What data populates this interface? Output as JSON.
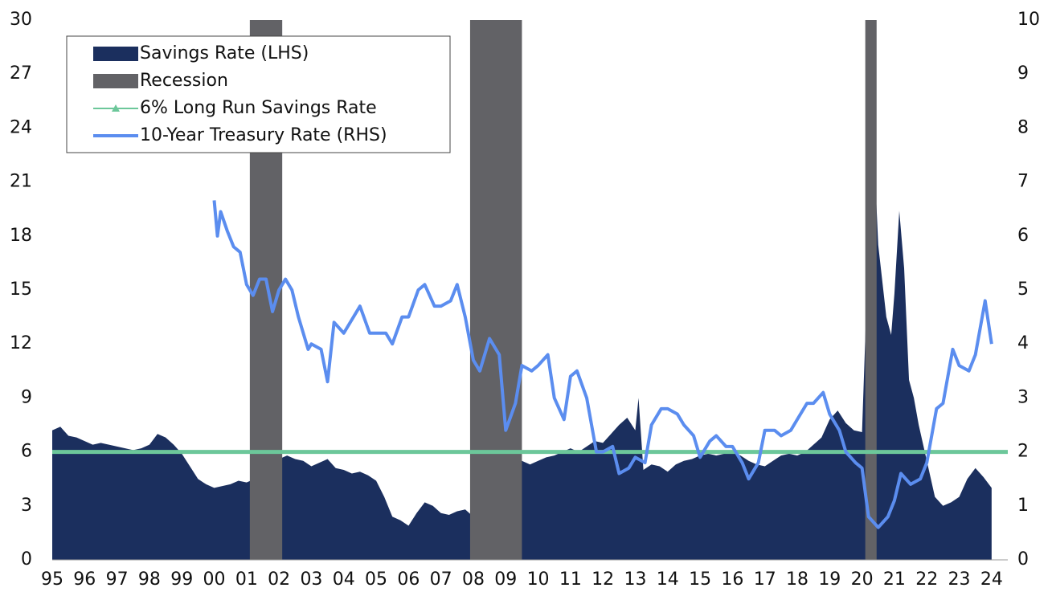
{
  "chart_data": {
    "type": "area",
    "legend": "top-left",
    "xlim": [
      1995,
      2024.5
    ],
    "xticks": [
      {
        "value": 1995,
        "label": "95"
      },
      {
        "value": 1996,
        "label": "96"
      },
      {
        "value": 1997,
        "label": "97"
      },
      {
        "value": 1998,
        "label": "98"
      },
      {
        "value": 1999,
        "label": "99"
      },
      {
        "value": 2000,
        "label": "00"
      },
      {
        "value": 2001,
        "label": "01"
      },
      {
        "value": 2002,
        "label": "02"
      },
      {
        "value": 2003,
        "label": "03"
      },
      {
        "value": 2004,
        "label": "04"
      },
      {
        "value": 2005,
        "label": "05"
      },
      {
        "value": 2006,
        "label": "06"
      },
      {
        "value": 2007,
        "label": "07"
      },
      {
        "value": 2008,
        "label": "08"
      },
      {
        "value": 2009,
        "label": "09"
      },
      {
        "value": 2010,
        "label": "10"
      },
      {
        "value": 2011,
        "label": "11"
      },
      {
        "value": 2012,
        "label": "12"
      },
      {
        "value": 2013,
        "label": "13"
      },
      {
        "value": 2014,
        "label": "14"
      },
      {
        "value": 2015,
        "label": "15"
      },
      {
        "value": 2016,
        "label": "16"
      },
      {
        "value": 2017,
        "label": "17"
      },
      {
        "value": 2018,
        "label": "18"
      },
      {
        "value": 2019,
        "label": "19"
      },
      {
        "value": 2020,
        "label": "20"
      },
      {
        "value": 2021,
        "label": "21"
      },
      {
        "value": 2022,
        "label": "22"
      },
      {
        "value": 2023,
        "label": "23"
      },
      {
        "value": 2024,
        "label": "24"
      }
    ],
    "ylim": [
      0,
      30
    ],
    "yticks": [
      0,
      3,
      6,
      9,
      12,
      15,
      18,
      21,
      24,
      27,
      30
    ],
    "y2lim": [
      0,
      10
    ],
    "y2ticks": [
      0,
      1,
      2,
      3,
      4,
      5,
      6,
      7,
      8,
      9,
      10
    ],
    "series": [
      {
        "name": "Savings Rate (LHS)",
        "type": "area",
        "color": "#1b2f5e",
        "x": [
          1995,
          1995.25,
          1995.5,
          1995.75,
          1996,
          1996.25,
          1996.5,
          1996.75,
          1997,
          1997.25,
          1997.5,
          1997.75,
          1998,
          1998.25,
          1998.5,
          1998.75,
          1999,
          1999.25,
          1999.5,
          1999.75,
          2000,
          2000.25,
          2000.5,
          2000.75,
          2001,
          2001.25,
          2001.5,
          2001.75,
          2002,
          2002.25,
          2002.5,
          2002.75,
          2003,
          2003.25,
          2003.5,
          2003.75,
          2004,
          2004.25,
          2004.5,
          2004.75,
          2005,
          2005.25,
          2005.5,
          2005.75,
          2006,
          2006.25,
          2006.5,
          2006.75,
          2007,
          2007.25,
          2007.5,
          2007.75,
          2008,
          2008.25,
          2008.5,
          2008.75,
          2009,
          2009.25,
          2009.5,
          2009.75,
          2010,
          2010.25,
          2010.5,
          2010.75,
          2011,
          2011.25,
          2011.5,
          2011.75,
          2012,
          2012.25,
          2012.5,
          2012.75,
          2013,
          2013.1,
          2013.25,
          2013.5,
          2013.75,
          2014,
          2014.25,
          2014.5,
          2014.75,
          2015,
          2015.25,
          2015.5,
          2015.75,
          2016,
          2016.25,
          2016.5,
          2016.75,
          2017,
          2017.25,
          2017.5,
          2017.75,
          2018,
          2018.25,
          2018.5,
          2018.75,
          2019,
          2019.25,
          2019.5,
          2019.75,
          2020,
          2020.33,
          2020.5,
          2020.75,
          2020.9,
          2021,
          2021.15,
          2021.3,
          2021.45,
          2021.6,
          2021.75,
          2022,
          2022.25,
          2022.5,
          2022.75,
          2023,
          2023.25,
          2023.5,
          2023.75,
          2024
        ],
        "values": [
          7.2,
          7.4,
          6.9,
          6.8,
          6.6,
          6.4,
          6.5,
          6.4,
          6.3,
          6.2,
          6.1,
          6.2,
          6.4,
          7.0,
          6.8,
          6.4,
          5.9,
          5.2,
          4.5,
          4.2,
          4.0,
          4.1,
          4.2,
          4.4,
          4.3,
          4.5,
          5.5,
          4.5,
          5.6,
          5.8,
          5.6,
          5.5,
          5.2,
          5.4,
          5.6,
          5.1,
          5.0,
          4.8,
          4.9,
          4.7,
          4.4,
          3.5,
          2.4,
          2.2,
          1.9,
          2.6,
          3.2,
          3.0,
          2.6,
          2.5,
          2.7,
          2.8,
          2.4,
          4.5,
          4.0,
          5.0,
          5.5,
          6.2,
          5.5,
          5.3,
          5.5,
          5.7,
          5.8,
          6.0,
          6.2,
          6.0,
          6.3,
          6.6,
          6.5,
          7.0,
          7.5,
          7.9,
          7.2,
          9.0,
          5.0,
          5.3,
          5.2,
          4.9,
          5.3,
          5.5,
          5.6,
          5.8,
          5.9,
          5.8,
          5.9,
          6.0,
          5.8,
          5.5,
          5.3,
          5.2,
          5.5,
          5.8,
          5.9,
          5.8,
          6.0,
          6.4,
          6.8,
          7.8,
          8.3,
          7.6,
          7.2,
          7.1,
          24.4,
          17.5,
          13.5,
          12.5,
          14.8,
          19.4,
          16.2,
          10.0,
          9.0,
          7.5,
          5.5,
          3.5,
          3.0,
          3.2,
          3.5,
          4.5,
          5.1,
          4.6,
          4.0
        ]
      },
      {
        "name": "Recession",
        "type": "span",
        "color": "#626266",
        "spans": [
          [
            2001.1,
            2002.1
          ],
          [
            2007.9,
            2009.5
          ],
          [
            2020.1,
            2020.45
          ]
        ]
      },
      {
        "name": "6% Long Run Savings Rate",
        "type": "line",
        "marker": "triangle",
        "color": "#6cc79a",
        "x": [
          1995,
          2024.5
        ],
        "values": [
          6,
          6
        ]
      },
      {
        "name": "10-Year Treasury Rate (RHS)",
        "type": "line",
        "axis": "y2",
        "color": "#5b8def",
        "x": [
          2000,
          2000.1,
          2000.2,
          2000.4,
          2000.6,
          2000.8,
          2001,
          2001.2,
          2001.4,
          2001.6,
          2001.8,
          2002,
          2002.2,
          2002.4,
          2002.6,
          2002.9,
          2003,
          2003.3,
          2003.5,
          2003.7,
          2004,
          2004.3,
          2004.5,
          2004.8,
          2005,
          2005.3,
          2005.5,
          2005.8,
          2006,
          2006.3,
          2006.5,
          2006.8,
          2007,
          2007.3,
          2007.5,
          2007.75,
          2008,
          2008.2,
          2008.5,
          2008.8,
          2009,
          2009.3,
          2009.5,
          2009.8,
          2010,
          2010.3,
          2010.5,
          2010.8,
          2011,
          2011.2,
          2011.5,
          2011.8,
          2012,
          2012.3,
          2012.5,
          2012.8,
          2013,
          2013.3,
          2013.5,
          2013.8,
          2014,
          2014.3,
          2014.5,
          2014.8,
          2015,
          2015.3,
          2015.5,
          2015.8,
          2016,
          2016.3,
          2016.5,
          2016.8,
          2017,
          2017.3,
          2017.5,
          2017.8,
          2018,
          2018.3,
          2018.5,
          2018.8,
          2019,
          2019.3,
          2019.5,
          2019.8,
          2020,
          2020.2,
          2020.5,
          2020.8,
          2021,
          2021.2,
          2021.5,
          2021.8,
          2022,
          2022.3,
          2022.5,
          2022.8,
          2023,
          2023.3,
          2023.5,
          2023.8,
          2024
        ],
        "values": [
          6.66,
          6.0,
          6.45,
          6.1,
          5.8,
          5.7,
          5.1,
          4.9,
          5.2,
          5.2,
          4.6,
          5.0,
          5.2,
          5.0,
          4.5,
          3.9,
          4.0,
          3.9,
          3.3,
          4.4,
          4.2,
          4.5,
          4.7,
          4.2,
          4.2,
          4.2,
          4.0,
          4.5,
          4.5,
          5.0,
          5.1,
          4.7,
          4.7,
          4.8,
          5.1,
          4.5,
          3.7,
          3.5,
          4.1,
          3.8,
          2.4,
          2.9,
          3.6,
          3.5,
          3.6,
          3.8,
          3.0,
          2.6,
          3.4,
          3.5,
          3.0,
          2.0,
          2.0,
          2.1,
          1.6,
          1.7,
          1.9,
          1.8,
          2.5,
          2.8,
          2.8,
          2.7,
          2.5,
          2.3,
          1.9,
          2.2,
          2.3,
          2.1,
          2.1,
          1.8,
          1.5,
          1.8,
          2.4,
          2.4,
          2.3,
          2.4,
          2.6,
          2.9,
          2.9,
          3.1,
          2.7,
          2.4,
          2.0,
          1.8,
          1.7,
          0.8,
          0.6,
          0.8,
          1.1,
          1.6,
          1.4,
          1.5,
          1.8,
          2.8,
          2.9,
          3.9,
          3.6,
          3.5,
          3.8,
          4.8,
          4.0
        ]
      }
    ]
  }
}
